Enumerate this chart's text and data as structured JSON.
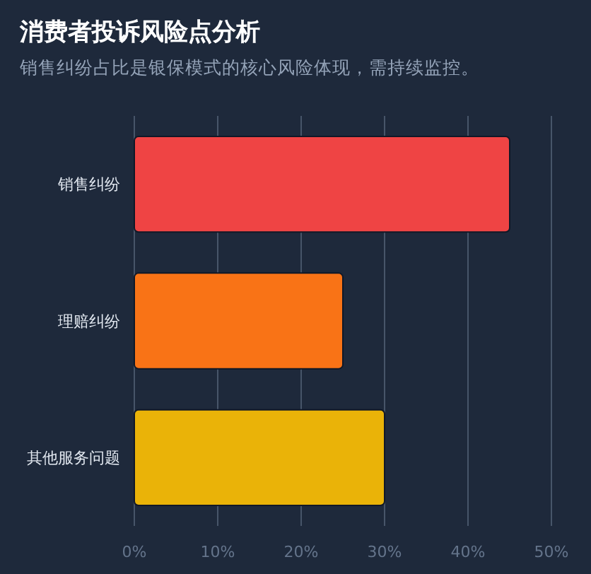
{
  "chart_data": {
    "type": "bar",
    "orientation": "horizontal",
    "title": "消费者投诉风险点分析",
    "subtitle": "销售纠纷占比是银保模式的核心风险体现，需持续监控。",
    "categories": [
      "销售纠纷",
      "理赔纠纷",
      "其他服务问题"
    ],
    "values": [
      45,
      25,
      30
    ],
    "colors": [
      "#ef4444",
      "#f97316",
      "#eab308"
    ],
    "xlim": [
      0,
      50
    ],
    "xticks": [
      {
        "value": 0,
        "label": "0%"
      },
      {
        "value": 10,
        "label": "10%"
      },
      {
        "value": 20,
        "label": "20%"
      },
      {
        "value": 30,
        "label": "30%"
      },
      {
        "value": 40,
        "label": "40%"
      },
      {
        "value": 50,
        "label": "50%"
      }
    ],
    "grid": "x"
  }
}
